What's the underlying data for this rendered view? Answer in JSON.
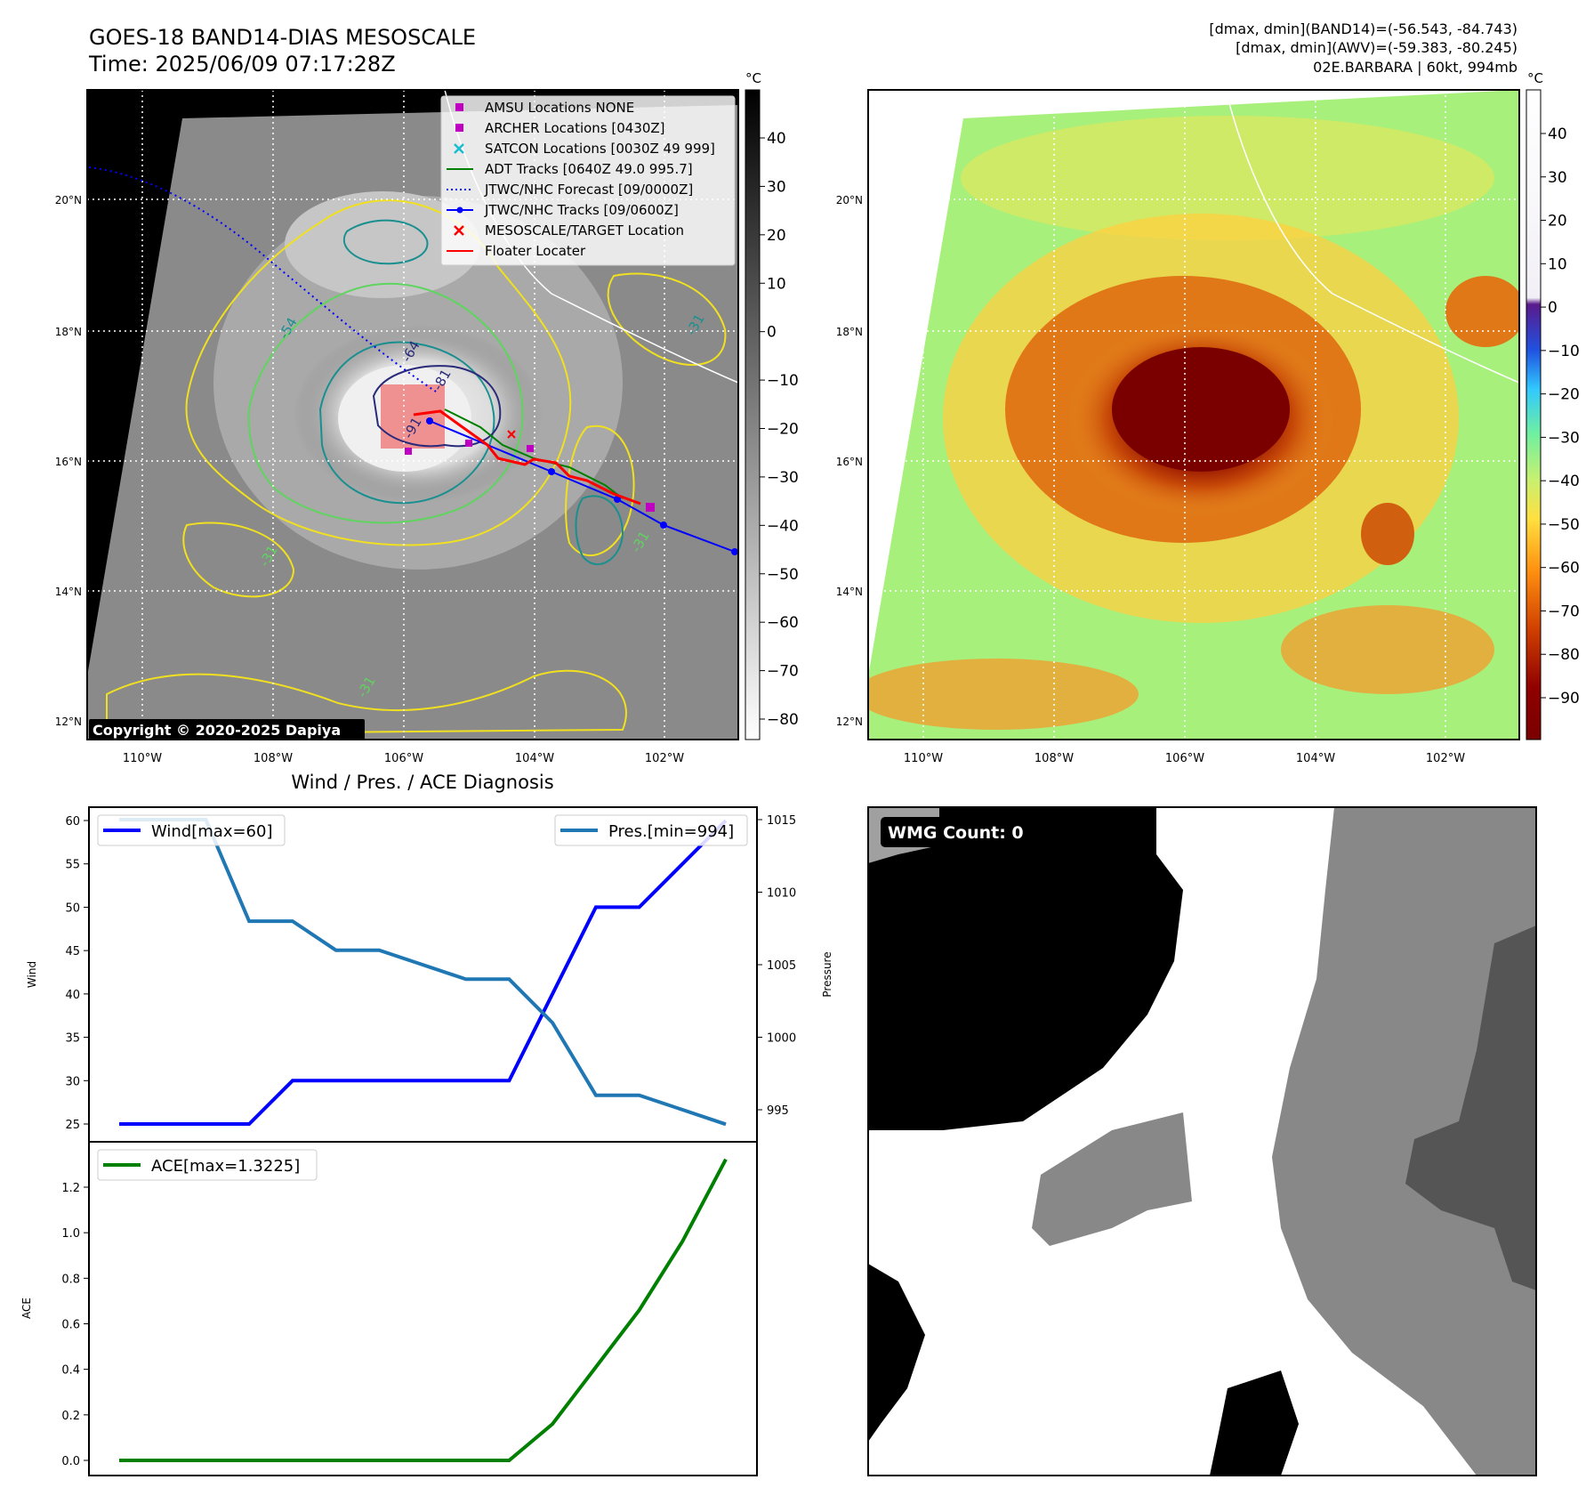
{
  "header": {
    "title_line1": "GOES-18 BAND14-DIAS MESOSCALE",
    "title_line2": "Time: 2025/06/09 07:17:28Z",
    "info_line1": "[dmax, dmin](BAND14)=(-56.543, -84.743)",
    "info_line2": "[dmax, dmin](AWV)=(-59.383, -80.245)",
    "info_line3": "02E.BARBARA | 60kt, 994mb"
  },
  "map_axes": {
    "lon_ticks": [
      "110°W",
      "108°W",
      "106°W",
      "104°W",
      "102°W"
    ],
    "lat_ticks": [
      "20°N",
      "18°N",
      "16°N",
      "14°N",
      "12°N"
    ]
  },
  "ir_panel": {
    "colorbar_unit": "°C",
    "colorbar_ticks": [
      "40",
      "30",
      "20",
      "10",
      "0",
      "−10",
      "−20",
      "−30",
      "−40",
      "−50",
      "−60",
      "−70",
      "−80"
    ],
    "copyright": "Copyright © 2020-2025 Dapiya",
    "contour_labels": [
      "-54",
      "-64",
      "-81",
      "-91",
      "-31",
      "-31",
      "-31",
      "-31"
    ],
    "legend": [
      {
        "label": "AMSU Locations NONE",
        "color": "#c000c0",
        "marker": "square"
      },
      {
        "label": "ARCHER Locations [0430Z]",
        "color": "#c000c0",
        "marker": "square"
      },
      {
        "label": "SATCON Locations [0030Z 49 999]",
        "color": "#17becf",
        "marker": "x"
      },
      {
        "label": "ADT Tracks [0640Z 49.0 995.7]",
        "color": "#008000",
        "marker": "line"
      },
      {
        "label": "JTWC/NHC Forecast [09/0000Z]",
        "color": "#0000ff",
        "marker": "dotted"
      },
      {
        "label": "JTWC/NHC Tracks [09/0600Z]",
        "color": "#0000ff",
        "marker": "line-dot"
      },
      {
        "label": "MESOSCALE/TARGET Location",
        "color": "#ff0000",
        "marker": "x"
      },
      {
        "label": "Floater Locater",
        "color": "#ff0000",
        "marker": "line"
      }
    ]
  },
  "awv_panel": {
    "colorbar_unit": "°C",
    "colorbar_ticks": [
      "40",
      "30",
      "20",
      "10",
      "0",
      "−10",
      "−20",
      "−30",
      "−40",
      "−50",
      "−60",
      "−70",
      "−80",
      "−90"
    ]
  },
  "diagnosis_panel": {
    "title": "Wind / Pres. / ACE Diagnosis",
    "wind_label": "Wind",
    "pressure_label": "Pressure",
    "ace_label": "ACE",
    "wind_ticks": [
      "60",
      "55",
      "50",
      "45",
      "40",
      "35",
      "30",
      "25"
    ],
    "pressure_ticks": [
      "1015",
      "1010",
      "1005",
      "1000",
      "995"
    ],
    "ace_ticks": [
      "1.2",
      "1.0",
      "0.8",
      "0.6",
      "0.4",
      "0.2",
      "0.0"
    ],
    "legend_wind": "Wind[max=60]",
    "legend_pres": "Pres.[min=994]",
    "legend_ace": "ACE[max=1.3225]"
  },
  "wmg_panel": {
    "badge": "WMG Count: 0"
  },
  "colors": {
    "wind_line": "#0000ff",
    "pressure_line": "#1f77b4",
    "ace_line": "#008000",
    "forecast_track": "#0000ff",
    "observed_track": "#0000ff",
    "adt_track": "#008000",
    "floater": "#ff0000",
    "archer": "#c000c0"
  },
  "chart_data": [
    {
      "type": "line",
      "title": "Wind / Pres. / ACE Diagnosis",
      "ylabel": "Wind",
      "x": [
        0,
        1,
        2,
        3,
        4,
        5,
        6,
        7,
        8,
        9,
        10,
        11,
        12,
        13,
        14
      ],
      "series": [
        {
          "name": "Wind[max=60]",
          "axis": "left",
          "values": [
            25,
            25,
            25,
            25,
            30,
            30,
            30,
            30,
            30,
            30,
            40,
            50,
            50,
            55,
            60
          ]
        },
        {
          "name": "Pres.[min=994]",
          "axis": "right",
          "values": [
            1015,
            1015,
            1015,
            1008,
            1008,
            1006,
            1006,
            1005,
            1004,
            1004,
            1001,
            996,
            996,
            995,
            994
          ]
        }
      ],
      "ylim": [
        24,
        61
      ],
      "y2label": "Pressure",
      "y2lim": [
        993.9,
        1016
      ]
    },
    {
      "type": "line",
      "ylabel": "ACE",
      "x": [
        0,
        1,
        2,
        3,
        4,
        5,
        6,
        7,
        8,
        9,
        10,
        11,
        12,
        13,
        14
      ],
      "series": [
        {
          "name": "ACE[max=1.3225]",
          "values": [
            0,
            0,
            0,
            0,
            0,
            0,
            0,
            0,
            0,
            0,
            0.16,
            0.41,
            0.66,
            0.9625,
            1.3225
          ]
        }
      ],
      "ylim": [
        -0.05,
        1.39
      ]
    }
  ]
}
